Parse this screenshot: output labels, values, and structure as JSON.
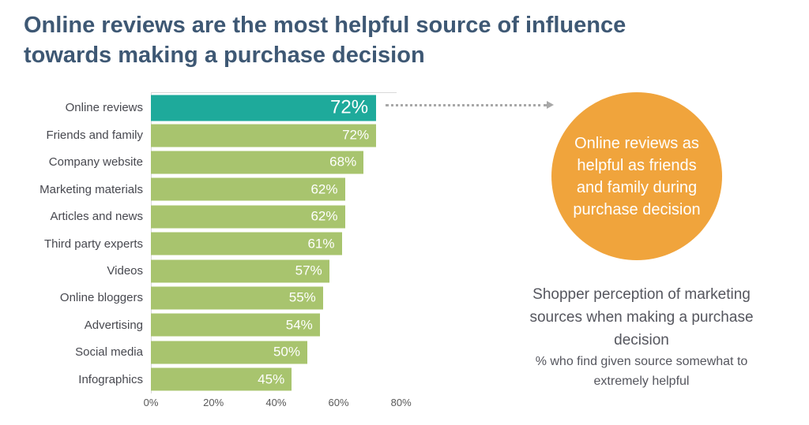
{
  "title": {
    "line1": "Online reviews are the most helpful source of influence",
    "line2": "towards making a purchase decision"
  },
  "chart_data": {
    "type": "bar",
    "orientation": "horizontal",
    "categories": [
      "Online reviews",
      "Friends and family",
      "Company website",
      "Marketing materials",
      "Articles and news",
      "Third party experts",
      "Videos",
      "Online bloggers",
      "Advertising",
      "Social media",
      "Infographics"
    ],
    "values": [
      72,
      72,
      68,
      62,
      62,
      61,
      57,
      55,
      54,
      50,
      45
    ],
    "value_labels": [
      "72%",
      "72%",
      "68%",
      "62%",
      "62%",
      "61%",
      "57%",
      "55%",
      "54%",
      "50%",
      "45%"
    ],
    "highlight_index": 0,
    "x_ticks": [
      0,
      20,
      40,
      60,
      80
    ],
    "x_tick_labels": [
      "0%",
      "20%",
      "40%",
      "60%",
      "80%"
    ],
    "xlim": [
      0,
      80
    ],
    "grid": "left-and-top-border-only",
    "legend": "none",
    "colors": {
      "highlight_bar": "#1eaa9b",
      "default_bar": "#a8c46e",
      "value_text": "#ffffff",
      "axis_line": "#d9d9d9"
    }
  },
  "callout": {
    "text": "Online reviews as helpful as friends and family during purchase decision",
    "circle_color": "#f0a43c",
    "arrow_color": "#a8a8a8"
  },
  "caption": {
    "main": "Shopper perception of marketing sources when making a purchase decision",
    "sub": "% who find given source somewhat to extremely helpful"
  },
  "style": {
    "title_color": "#3e5874",
    "category_label_color": "#47484f",
    "axis_label_color": "#595959"
  }
}
